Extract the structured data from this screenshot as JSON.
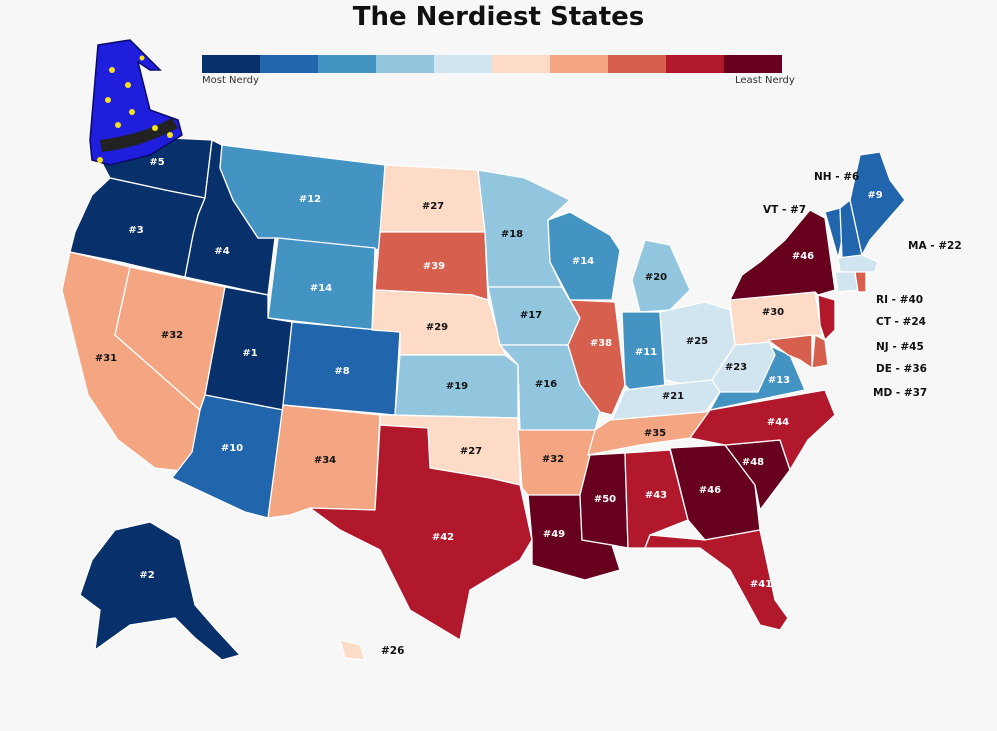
{
  "title": "The Nerdiest States",
  "legend": {
    "most_label": "Most Nerdy",
    "least_label": "Least Nerdy",
    "colors": [
      "#08306b",
      "#2166ac",
      "#4393c3",
      "#92c5de",
      "#d1e5f0",
      "#fddbc7",
      "#f4a582",
      "#d6604d",
      "#b2182b",
      "#67001f"
    ]
  },
  "decoration": {
    "icon": "wizard-hat-icon",
    "hat_color": "#1e1edc",
    "star_color": "#f5e11e"
  },
  "states": [
    {
      "abbr": "WA",
      "label": "#5",
      "fill": "#08306b"
    },
    {
      "abbr": "OR",
      "label": "#3",
      "fill": "#08306b"
    },
    {
      "abbr": "CA",
      "label": "#31",
      "fill": "#f4a582"
    },
    {
      "abbr": "NV",
      "label": "#32",
      "fill": "#f4a582"
    },
    {
      "abbr": "ID",
      "label": "#4",
      "fill": "#08306b"
    },
    {
      "abbr": "MT",
      "label": "#12",
      "fill": "#4393c3"
    },
    {
      "abbr": "WY",
      "label": "#14",
      "fill": "#4393c3"
    },
    {
      "abbr": "UT",
      "label": "#1",
      "fill": "#08306b"
    },
    {
      "abbr": "CO",
      "label": "#8",
      "fill": "#2166ac"
    },
    {
      "abbr": "AZ",
      "label": "#10",
      "fill": "#2166ac"
    },
    {
      "abbr": "NM",
      "label": "#34",
      "fill": "#f4a582"
    },
    {
      "abbr": "ND",
      "label": "#27",
      "fill": "#fddbc7"
    },
    {
      "abbr": "SD",
      "label": "#39",
      "fill": "#d6604d"
    },
    {
      "abbr": "NE",
      "label": "#29",
      "fill": "#fddbc7"
    },
    {
      "abbr": "KS",
      "label": "#19",
      "fill": "#92c5de"
    },
    {
      "abbr": "OK",
      "label": "#27",
      "fill": "#fddbc7"
    },
    {
      "abbr": "TX",
      "label": "#42",
      "fill": "#b2182b"
    },
    {
      "abbr": "MN",
      "label": "#18",
      "fill": "#92c5de"
    },
    {
      "abbr": "IA",
      "label": "#17",
      "fill": "#92c5de"
    },
    {
      "abbr": "MO",
      "label": "#16",
      "fill": "#92c5de"
    },
    {
      "abbr": "AR",
      "label": "#32",
      "fill": "#f4a582"
    },
    {
      "abbr": "LA",
      "label": "#49",
      "fill": "#67001f"
    },
    {
      "abbr": "WI",
      "label": "#14",
      "fill": "#4393c3"
    },
    {
      "abbr": "IL",
      "label": "#38",
      "fill": "#d6604d"
    },
    {
      "abbr": "MI",
      "label": "#20",
      "fill": "#92c5de"
    },
    {
      "abbr": "IN",
      "label": "#11",
      "fill": "#4393c3"
    },
    {
      "abbr": "OH",
      "label": "#25",
      "fill": "#d1e5f0"
    },
    {
      "abbr": "KY",
      "label": "#21",
      "fill": "#d1e5f0"
    },
    {
      "abbr": "TN",
      "label": "#35",
      "fill": "#f4a582"
    },
    {
      "abbr": "MS",
      "label": "#50",
      "fill": "#67001f"
    },
    {
      "abbr": "AL",
      "label": "#43",
      "fill": "#b2182b"
    },
    {
      "abbr": "GA",
      "label": "#46",
      "fill": "#67001f"
    },
    {
      "abbr": "FL",
      "label": "#41",
      "fill": "#b2182b"
    },
    {
      "abbr": "SC",
      "label": "#48",
      "fill": "#67001f"
    },
    {
      "abbr": "NC",
      "label": "#44",
      "fill": "#b2182b"
    },
    {
      "abbr": "VA",
      "label": "#13",
      "fill": "#4393c3"
    },
    {
      "abbr": "WV",
      "label": "#23",
      "fill": "#d1e5f0"
    },
    {
      "abbr": "PA",
      "label": "#30",
      "fill": "#fddbc7"
    },
    {
      "abbr": "NY",
      "label": "#46",
      "fill": "#67001f"
    },
    {
      "abbr": "VT",
      "label": "VT - #7",
      "fill": "#2166ac"
    },
    {
      "abbr": "NH",
      "label": "NH - #6",
      "fill": "#2166ac"
    },
    {
      "abbr": "ME",
      "label": "#9",
      "fill": "#2166ac"
    },
    {
      "abbr": "MA",
      "label": "MA - #22",
      "fill": "#d1e5f0"
    },
    {
      "abbr": "RI",
      "label": "RI - #40",
      "fill": "#d6604d"
    },
    {
      "abbr": "CT",
      "label": "CT - #24",
      "fill": "#d1e5f0"
    },
    {
      "abbr": "NJ",
      "label": "NJ - #45",
      "fill": "#b2182b"
    },
    {
      "abbr": "DE",
      "label": "DE - #36",
      "fill": "#d6604d"
    },
    {
      "abbr": "MD",
      "label": "MD - #37",
      "fill": "#d6604d"
    },
    {
      "abbr": "AK",
      "label": "#2",
      "fill": "#08306b"
    },
    {
      "abbr": "HI",
      "label": "#26",
      "fill": "#fddbc7"
    }
  ]
}
